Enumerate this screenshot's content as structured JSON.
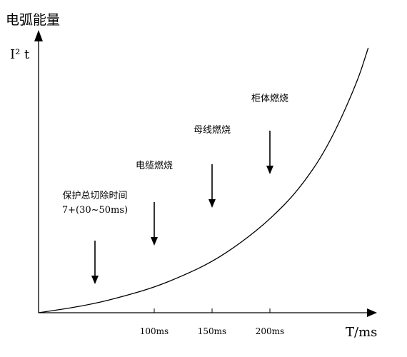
{
  "chart_data": {
    "type": "line",
    "title": "电弧能量",
    "ylabel": "I² t",
    "xlabel": "T/ms",
    "x_ticks": [
      "100ms",
      "150ms",
      "200ms"
    ],
    "x_tick_values": [
      100,
      150,
      200
    ],
    "xlim": [
      0,
      290
    ],
    "grid": false,
    "series": [
      {
        "x": [
          0,
          25,
          50,
          75,
          100,
          125,
          150,
          175,
          200,
          225,
          250,
          275,
          285
        ],
        "y": [
          0,
          0.04,
          0.09,
          0.16,
          0.24,
          0.35,
          0.48,
          0.66,
          0.88,
          1.16,
          1.56,
          2.16,
          2.5
        ]
      }
    ],
    "annotations": [
      {
        "lines": [
          "保护总切除时间",
          "7+(30~50ms)"
        ],
        "x": 50
      },
      {
        "lines": [
          "电缆燃烧"
        ],
        "x": 100
      },
      {
        "lines": [
          "母线燃烧"
        ],
        "x": 150
      },
      {
        "lines": [
          "柜体燃烧"
        ],
        "x": 200
      }
    ]
  }
}
